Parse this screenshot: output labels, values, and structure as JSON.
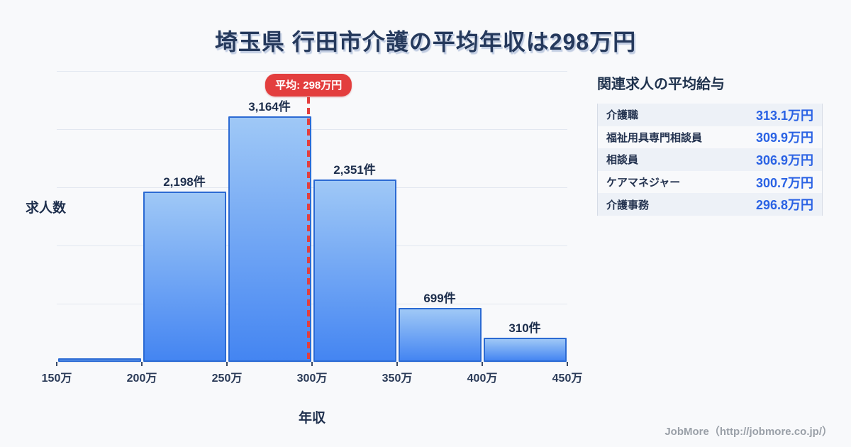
{
  "title": "埼玉県 行田市介護の平均年収は298万円",
  "chart_data": {
    "type": "bar",
    "title": "埼玉県 行田市介護の平均年収は298万円",
    "xlabel": "年収",
    "ylabel": "求人数",
    "axis_range": [
      150,
      450
    ],
    "bin_edge_labels": [
      "150万",
      "200万",
      "250万",
      "300万",
      "350万",
      "400万",
      "450万"
    ],
    "bins": [
      {
        "from": 150,
        "to": 200,
        "value": 40,
        "label": ""
      },
      {
        "from": 200,
        "to": 250,
        "value": 2198,
        "label": "2,198件"
      },
      {
        "from": 250,
        "to": 300,
        "value": 3164,
        "label": "3,164件"
      },
      {
        "from": 300,
        "to": 350,
        "value": 2351,
        "label": "2,351件"
      },
      {
        "from": 350,
        "to": 400,
        "value": 699,
        "label": "699件"
      },
      {
        "from": 400,
        "to": 450,
        "value": 310,
        "label": "310件"
      }
    ],
    "ylim": [
      0,
      3750
    ],
    "grid_interval": 750,
    "grid": true,
    "y_tick_labels_hidden": true,
    "average": {
      "value": 298,
      "label": "平均: 298万円"
    },
    "legend": "none",
    "colors": {
      "bar_fill_top": "#9fc8f6",
      "bar_fill_bottom": "#4485f2",
      "bar_border": "#2b6ad3",
      "average_line": "#e33e3e",
      "title_text": "#25395c",
      "background": "#f8f9fb"
    }
  },
  "side_panel": {
    "heading": "関連求人の平均給与",
    "value_color": "#2a62e4",
    "rows": [
      {
        "label": "介護職",
        "value": "313.1万円"
      },
      {
        "label": "福祉用具専門相談員",
        "value": "309.9万円"
      },
      {
        "label": "相談員",
        "value": "306.9万円"
      },
      {
        "label": "ケアマネジャー",
        "value": "300.7万円"
      },
      {
        "label": "介護事務",
        "value": "296.8万円"
      }
    ]
  },
  "footer": {
    "credit": "JobMore（http://jobmore.co.jp/）"
  }
}
